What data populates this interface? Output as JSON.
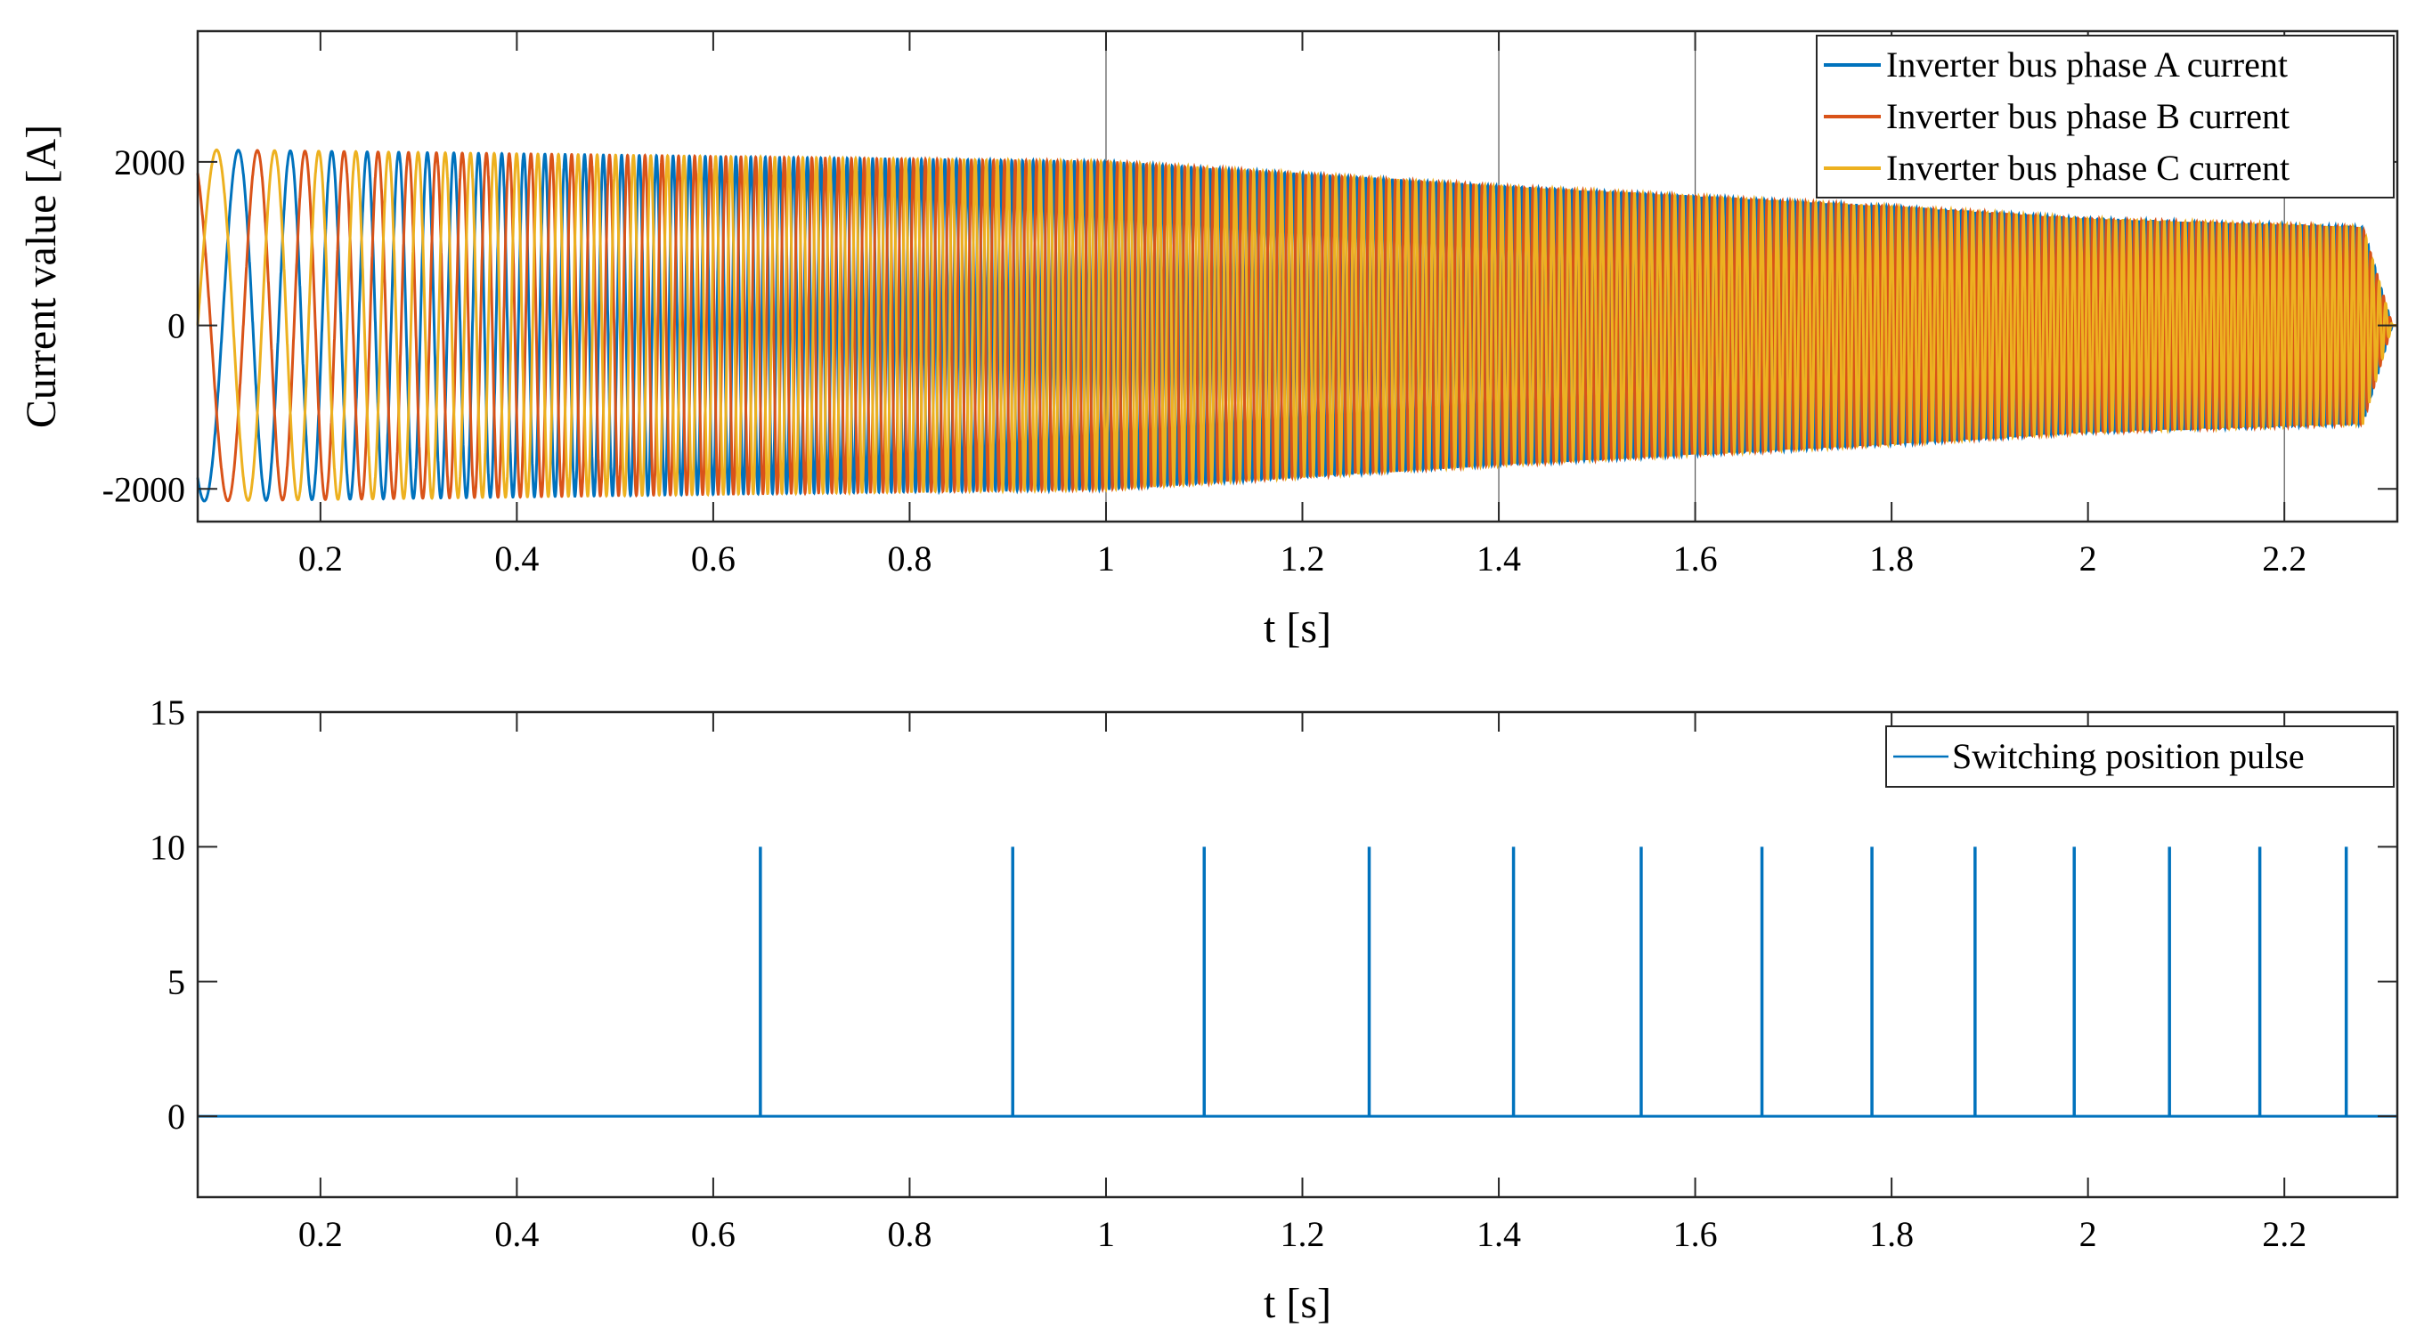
{
  "chart_data": [
    {
      "type": "line",
      "xlabel": "t [s]",
      "ylabel": "Current value [A]",
      "xlim": [
        0.075,
        2.315
      ],
      "ylim": [
        -2400,
        3600
      ],
      "xticks": [
        0.2,
        0.4,
        0.6,
        0.8,
        1,
        1.2,
        1.4,
        1.6,
        1.8,
        2,
        2.2
      ],
      "xtick_labels": [
        "0.2",
        "0.4",
        "0.6",
        "0.8",
        "1",
        "1.2",
        "1.4",
        "1.6",
        "1.8",
        "2",
        "2.2"
      ],
      "yticks": [
        -2000,
        0,
        2000
      ],
      "ytick_labels": [
        "-2000",
        "0",
        "2000"
      ],
      "legend_position": "top-right",
      "grid": false,
      "description_only_legend": false,
      "series": [
        {
          "name": "Inverter bus phase A current",
          "color": "#0072BD",
          "phase_deg": 240
        },
        {
          "name": "Inverter bus phase B current",
          "color": "#D95319",
          "phase_deg": 120
        },
        {
          "name": "Inverter bus phase C current",
          "color": "#EDB120",
          "phase_deg": 0
        }
      ],
      "envelope": {
        "t": [
          0.075,
          0.4,
          1.0,
          1.4,
          1.8,
          2.0,
          2.28,
          2.31
        ],
        "amplitude": [
          2150,
          2100,
          2000,
          1700,
          1450,
          1300,
          1200,
          0
        ]
      },
      "frequency": {
        "t": [
          0.075,
          0.4,
          1.0,
          2.28
        ],
        "hz": [
          12,
          45,
          100,
          150
        ]
      },
      "vertical_markers": [
        1.0,
        1.4,
        1.6,
        2.2
      ]
    },
    {
      "type": "line",
      "xlabel": "t [s]",
      "ylabel": "",
      "xlim": [
        0.075,
        2.315
      ],
      "ylim": [
        -3,
        15
      ],
      "xticks": [
        0.2,
        0.4,
        0.6,
        0.8,
        1,
        1.2,
        1.4,
        1.6,
        1.8,
        2,
        2.2
      ],
      "xtick_labels": [
        "0.2",
        "0.4",
        "0.6",
        "0.8",
        "1",
        "1.2",
        "1.4",
        "1.6",
        "1.8",
        "2",
        "2.2"
      ],
      "yticks": [
        0,
        5,
        10,
        15
      ],
      "ytick_labels": [
        "0",
        "5",
        "10",
        "15"
      ],
      "legend_position": "top-right",
      "grid": false,
      "series": [
        {
          "name": "Switching position pulse",
          "color": "#0072BD",
          "baseline": 0,
          "pulse_height": 10,
          "pulse_times": [
            0.648,
            0.905,
            1.1,
            1.268,
            1.415,
            1.545,
            1.668,
            1.78,
            1.885,
            1.986,
            2.083,
            2.175,
            2.263
          ]
        }
      ]
    }
  ]
}
